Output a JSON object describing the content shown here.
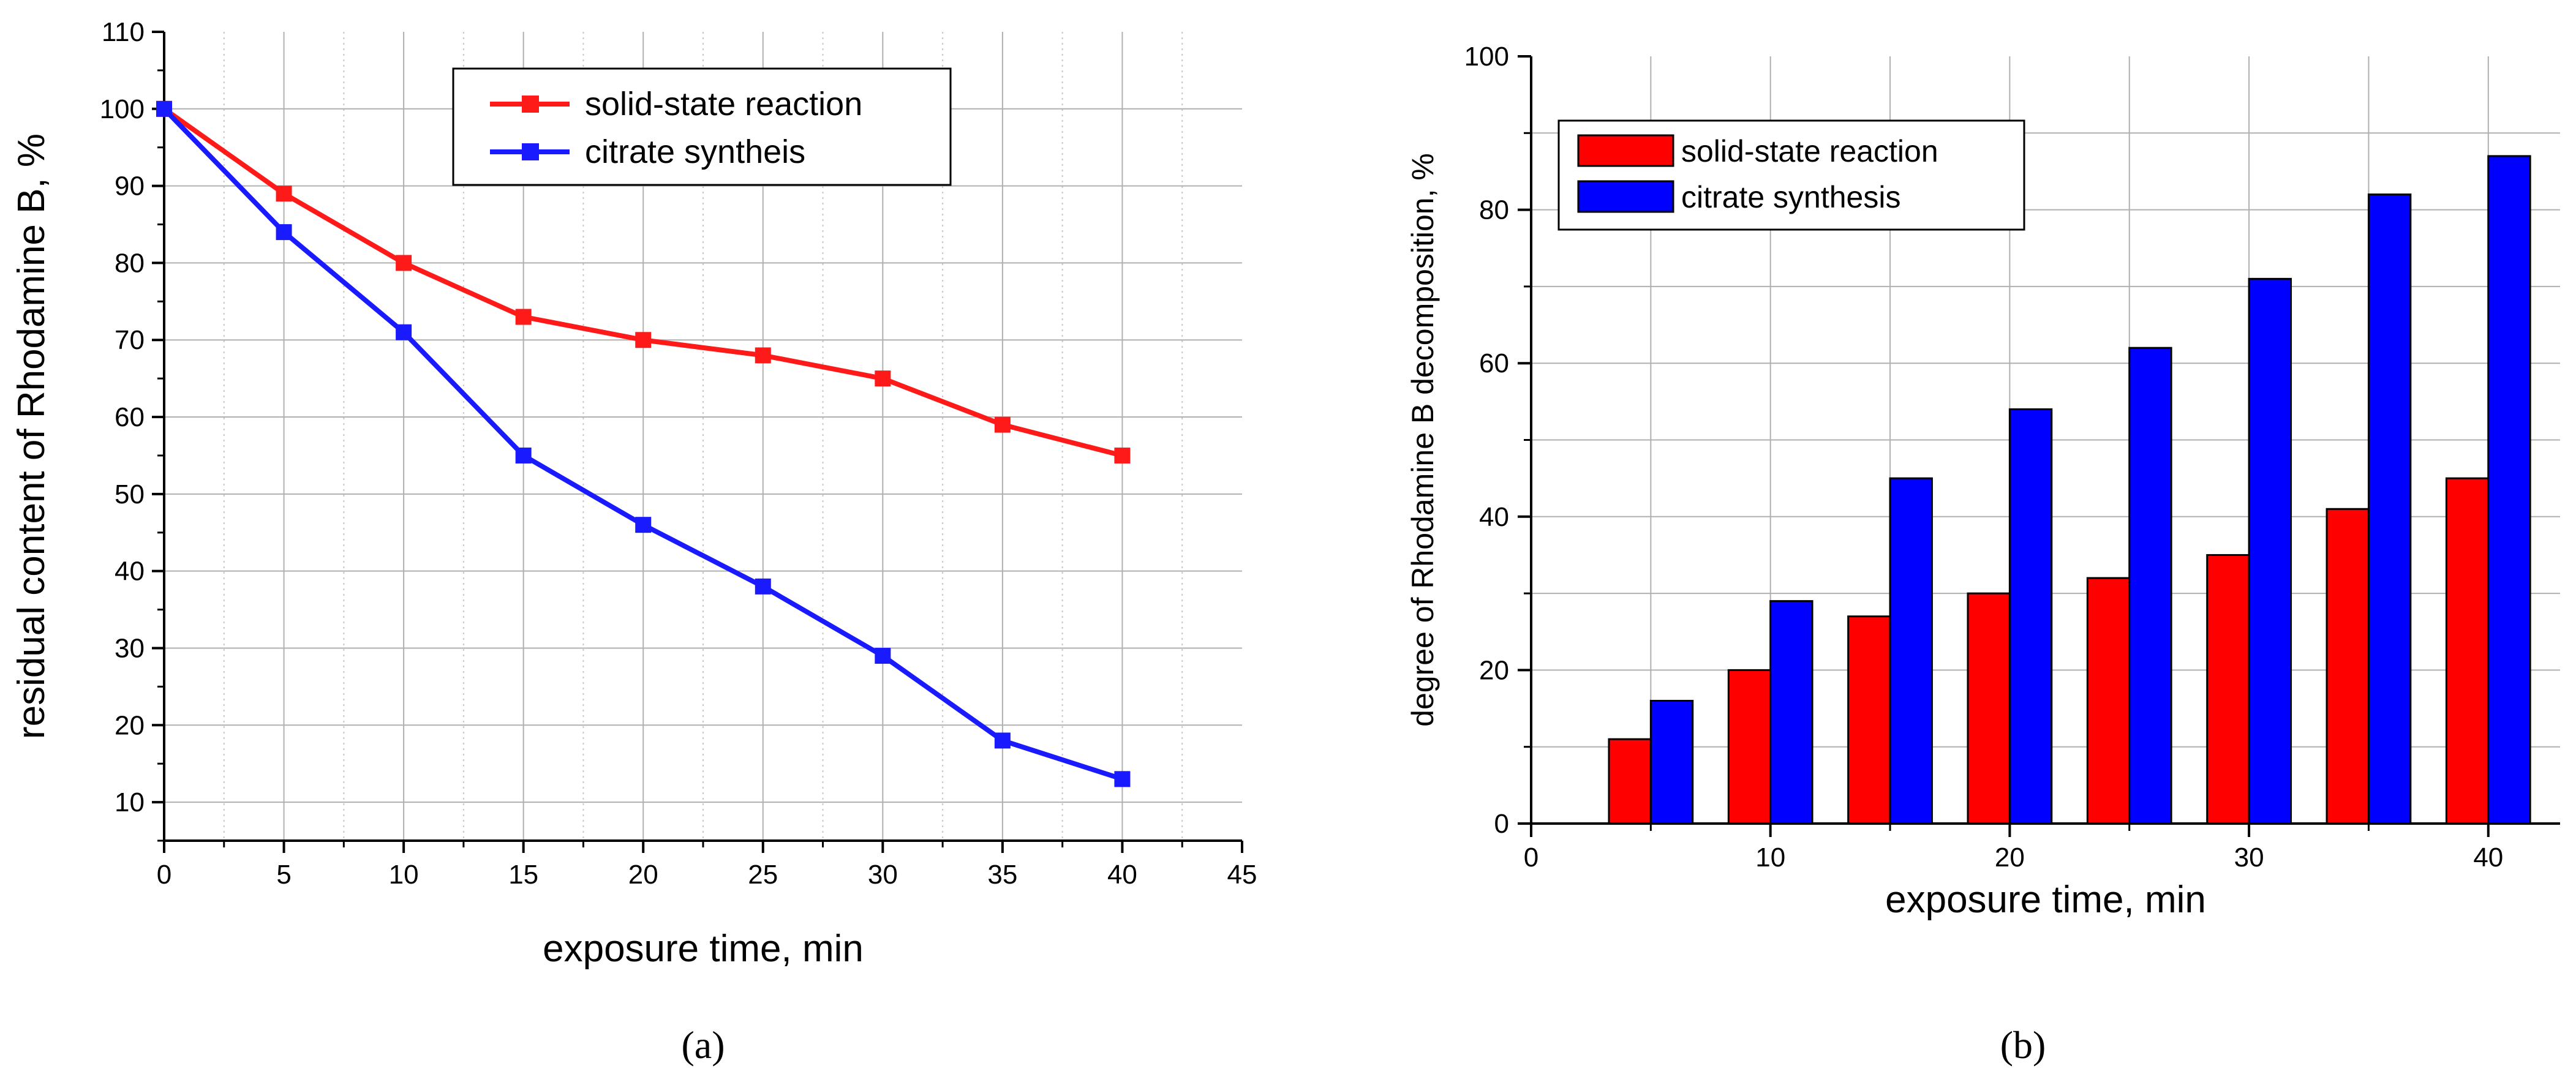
{
  "chart_data": [
    {
      "type": "line",
      "panel_label": "(a)",
      "xlabel": "exposure time, min",
      "ylabel": "residual content of Rhodamine B, %",
      "xlim": [
        0,
        45
      ],
      "ylim": [
        5,
        110
      ],
      "xticks": [
        0,
        5,
        10,
        15,
        20,
        25,
        30,
        35,
        40,
        45
      ],
      "yticks": [
        10,
        20,
        30,
        40,
        50,
        60,
        70,
        80,
        90,
        100,
        110
      ],
      "grid": true,
      "legend_position": "top-center",
      "x": [
        0,
        5,
        10,
        15,
        20,
        25,
        30,
        35,
        40
      ],
      "series": [
        {
          "name": "solid-state reaction",
          "color": "#ff1a1a",
          "values": [
            100,
            89,
            80,
            73,
            70,
            68,
            65,
            59,
            55
          ]
        },
        {
          "name": "citrate syntheis",
          "color": "#1a1aff",
          "values": [
            100,
            84,
            71,
            55,
            46,
            38,
            29,
            18,
            13
          ]
        }
      ]
    },
    {
      "type": "bar",
      "panel_label": "(b)",
      "xlabel": "exposure time, min",
      "ylabel": "degree of Rhodamine B decomposition, %",
      "xlim": [
        0,
        43
      ],
      "ylim": [
        0,
        100
      ],
      "xticks": [
        0,
        10,
        20,
        30,
        40
      ],
      "yticks": [
        0,
        20,
        40,
        60,
        80,
        100
      ],
      "grid": true,
      "legend_position": "top-left",
      "categories": [
        5,
        10,
        15,
        20,
        25,
        30,
        35,
        40
      ],
      "series": [
        {
          "name": "solid-state reaction",
          "color": "#ff0000",
          "values": [
            11,
            20,
            27,
            30,
            32,
            35,
            41,
            45
          ]
        },
        {
          "name": "citrate synthesis",
          "color": "#0000ff",
          "values": [
            16,
            29,
            45,
            54,
            62,
            71,
            82,
            87
          ]
        }
      ]
    }
  ]
}
